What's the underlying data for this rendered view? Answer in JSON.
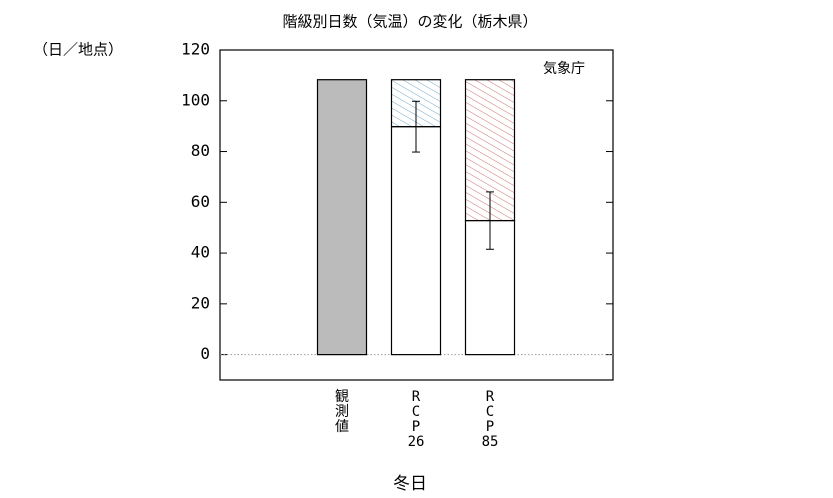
{
  "chart_data": {
    "type": "bar",
    "title": "階級別日数（気温）の変化（栃木県）",
    "y_unit": "（日／地点）",
    "annotation": "気象庁",
    "xlabel": "冬日",
    "categories": [
      [
        "観",
        "測",
        "値"
      ],
      [
        "R",
        "C",
        "P",
        "26"
      ],
      [
        "R",
        "C",
        "P",
        "85"
      ]
    ],
    "series": [
      {
        "colors": [
          "#bbbbbb",
          "#ffffff",
          "#ffffff"
        ],
        "values": [
          108.3,
          89.8,
          52.8
        ],
        "errors": [
          null,
          10,
          11.3
        ]
      },
      {
        "hatch": true,
        "colors": [
          null,
          "#6fa8c8",
          "#d07070"
        ],
        "values": [
          null,
          18.5,
          55.5
        ]
      }
    ],
    "ylim": [
      -10,
      120
    ],
    "yticks": [
      0,
      20,
      40,
      60,
      80,
      100,
      120
    ],
    "zero_line": true
  }
}
